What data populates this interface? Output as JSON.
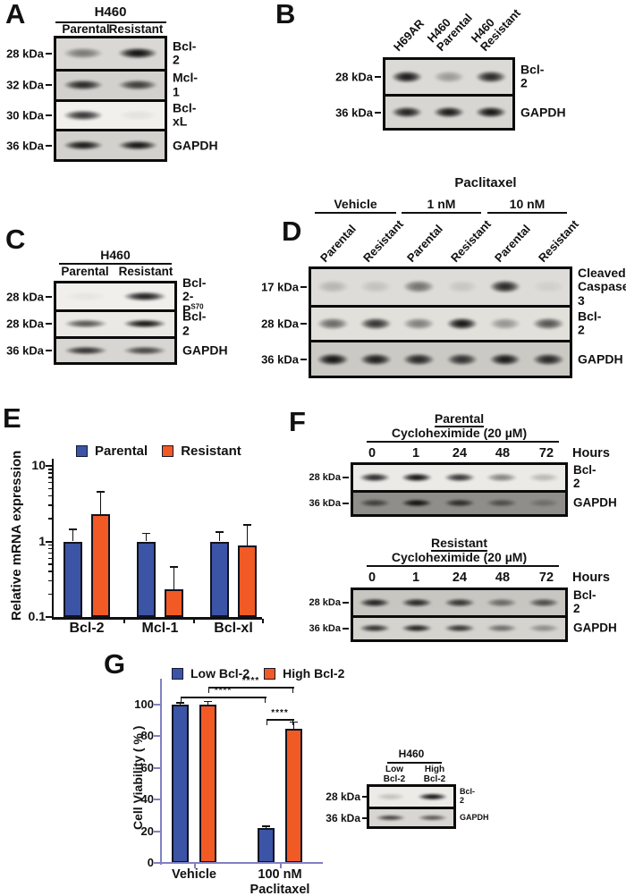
{
  "panels": {
    "A": {
      "letter": "A",
      "header": "H460",
      "col_labels": [
        "Parental",
        "Resistant"
      ],
      "blot": {
        "rows": [
          {
            "kda": "28 kDa",
            "label": "Bcl-2",
            "bg": "#dad8d4",
            "bands": [
              0.45,
              0.97
            ]
          },
          {
            "kda": "32 kDa",
            "label": "Mcl-1",
            "bg": "#d3d1cd",
            "bands": [
              0.85,
              0.75
            ]
          },
          {
            "kda": "30 kDa",
            "label": "Bcl-xL",
            "bg": "#f1f0ed",
            "bands": [
              0.8,
              0.06
            ]
          },
          {
            "kda": "36 kDa",
            "label": "GAPDH",
            "bg": "#d3d1cd",
            "bands": [
              0.92,
              0.95
            ]
          }
        ]
      }
    },
    "B": {
      "letter": "B",
      "lane_labels": [
        "H69AR",
        "H460\nParental",
        "H460\nResistant"
      ],
      "blot": {
        "rows": [
          {
            "kda": "28 kDa",
            "label": "Bcl-2",
            "bg": "#dcdad6",
            "bands": [
              0.92,
              0.3,
              0.85
            ]
          },
          {
            "kda": "36 kDa",
            "label": "GAPDH",
            "bg": "#d8d6d2",
            "bands": [
              0.88,
              0.92,
              0.95
            ]
          }
        ]
      }
    },
    "C": {
      "letter": "C",
      "header": "H460",
      "col_labels": [
        "Parental",
        "Resistant"
      ],
      "blot": {
        "rows": [
          {
            "kda": "28 kDa",
            "label": {
              "base": "Bcl-2-P",
              "sup": "S70"
            },
            "bg": "#f0efec",
            "bands": [
              0.04,
              0.9
            ]
          },
          {
            "kda": "28 kDa",
            "label": "Bcl-2",
            "bg": "#ebe9e5",
            "bands": [
              0.65,
              0.95
            ]
          },
          {
            "kda": "36 kDa",
            "label": "GAPDH",
            "bg": "#d8d6d2",
            "bands": [
              0.8,
              0.7
            ]
          }
        ]
      }
    },
    "D": {
      "letter": "D",
      "treatment": "Paclitaxel",
      "groups": [
        "Vehicle",
        "1 nM",
        "10 nM"
      ],
      "lane_labels": [
        "Parental",
        "Resistant",
        "Parental",
        "Resistant",
        "Parental",
        "Resistant"
      ],
      "blot": {
        "rows": [
          {
            "kda": "17 kDa",
            "label": "Cleaved\nCaspase 3",
            "bg": "#dedcd8",
            "bands": [
              0.18,
              0.12,
              0.5,
              0.1,
              0.85,
              0.06
            ]
          },
          {
            "kda": "28 kDa",
            "label": "Bcl-2",
            "bg": "#e2e0db",
            "bands": [
              0.55,
              0.8,
              0.45,
              0.95,
              0.35,
              0.65
            ]
          },
          {
            "kda": "36 kDa",
            "label": "GAPDH",
            "bg": "#cbc9c4",
            "bands": [
              0.95,
              0.9,
              0.85,
              0.8,
              0.92,
              0.85
            ]
          }
        ]
      }
    },
    "E": {
      "letter": "E"
    },
    "F": {
      "letter": "F",
      "groups": [
        {
          "title": "Parental",
          "treatment": "Cycloheximide (20 µM)",
          "hours": [
            "0",
            "1",
            "24",
            "48",
            "72"
          ],
          "hours_label": "Hours",
          "blot": {
            "rows": [
              {
                "kda": "28 kDa",
                "label": "Bcl-2",
                "bg": "#eceae6",
                "bands": [
                  0.85,
                  0.97,
                  0.8,
                  0.45,
                  0.22
                ]
              },
              {
                "kda": "36 kDa",
                "label": "GAPDH",
                "bg": "#908e8a",
                "bands": [
                  0.6,
                  0.95,
                  0.75,
                  0.5,
                  0.25
                ]
              }
            ]
          }
        },
        {
          "title": "Resistant",
          "treatment": "Cycloheximide (20 µM)",
          "hours": [
            "0",
            "1",
            "24",
            "48",
            "72"
          ],
          "hours_label": "Hours",
          "blot": {
            "rows": [
              {
                "kda": "28 kDa",
                "label": "Bcl-2",
                "bg": "#c8c6c1",
                "bands": [
                  0.88,
                  0.85,
                  0.78,
                  0.5,
                  0.65
                ]
              },
              {
                "kda": "36 kDa",
                "label": "GAPDH",
                "bg": "#d5d3ce",
                "bands": [
                  0.8,
                  0.88,
                  0.78,
                  0.5,
                  0.35
                ]
              }
            ]
          }
        }
      ]
    },
    "G": {
      "letter": "G",
      "inset": {
        "header": "H460",
        "col_labels": [
          "Low\nBcl-2",
          "High\nBcl-2"
        ],
        "blot": {
          "rows": [
            {
              "kda": "28 kDa",
              "label": "Bcl-2",
              "bg": "#edebe7",
              "bands": [
                0.18,
                0.97
              ]
            },
            {
              "kda": "36 kDa",
              "label": "GAPDH",
              "bg": "#d8d6d2",
              "bands": [
                0.72,
                0.62
              ]
            }
          ]
        }
      }
    }
  },
  "chart_data": [
    {
      "panel": "E",
      "type": "bar",
      "scale": "log",
      "ylabel": "Relative mRNA expression",
      "categories": [
        "Bcl-2",
        "Mcl-1",
        "Bcl-xl"
      ],
      "yticks": [
        "10",
        "1",
        "0.1"
      ],
      "ylim": [
        0.1,
        10
      ],
      "grid": false,
      "legend_position": "top",
      "series": [
        {
          "name": "Parental",
          "color": "#3B54A5",
          "values": [
            1.0,
            1.0,
            1.0
          ],
          "err_top": [
            1.45,
            1.28,
            1.32
          ]
        },
        {
          "name": "Resistant",
          "color": "#F15A24",
          "values": [
            2.3,
            0.23,
            0.88
          ],
          "err_top": [
            4.5,
            0.46,
            1.65
          ]
        }
      ]
    },
    {
      "panel": "G",
      "type": "bar",
      "scale": "linear",
      "ylabel": "Cell Viability ( % )",
      "categories": [
        "Vehicle",
        "100 nM\nPaclitaxel"
      ],
      "yticks": [
        0,
        20,
        40,
        60,
        80,
        100
      ],
      "ylim": [
        0,
        100
      ],
      "grid": false,
      "axis_color": "#8181c1",
      "legend_position": "top",
      "series": [
        {
          "name": "Low Bcl-2",
          "color": "#3B54A5",
          "values": [
            100,
            22
          ],
          "err_top": [
            101,
            23
          ]
        },
        {
          "name": "High Bcl-2",
          "color": "#F15A24",
          "values": [
            100,
            85
          ],
          "err_top": [
            102,
            89
          ]
        }
      ],
      "significance": [
        {
          "a": [
            1,
            0
          ],
          "b": [
            1,
            1
          ],
          "label": "****"
        },
        {
          "a": [
            0,
            0
          ],
          "b": [
            0,
            1
          ],
          "label": "****"
        },
        {
          "a": [
            0,
            1
          ],
          "b": [
            1,
            1
          ],
          "label": "****"
        }
      ]
    }
  ]
}
